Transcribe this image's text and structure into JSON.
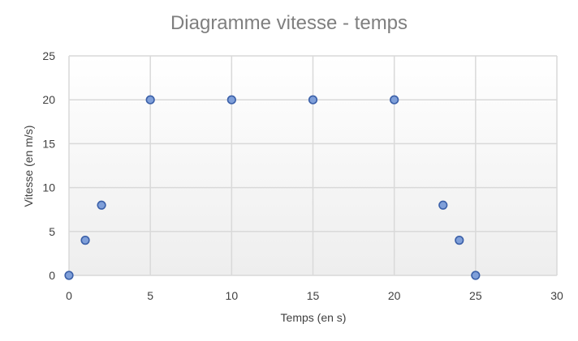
{
  "chart_data": {
    "type": "scatter",
    "title": "Diagramme vitesse - temps",
    "xlabel": "Temps (en s)",
    "ylabel": "Vitesse (en m/s)",
    "xlim": [
      0,
      30
    ],
    "ylim": [
      0,
      25
    ],
    "xticks": [
      0,
      5,
      10,
      15,
      20,
      25,
      30
    ],
    "yticks": [
      0,
      5,
      10,
      15,
      20,
      25
    ],
    "grid": true,
    "legend": "none",
    "series": [
      {
        "x": [
          0,
          1,
          2,
          5,
          10,
          15,
          20,
          23,
          24,
          25
        ],
        "y": [
          0,
          4,
          8,
          20,
          20,
          20,
          20,
          8,
          4,
          0
        ]
      }
    ],
    "colors": {
      "marker_fill": "#7f9fd9",
      "marker_stroke": "#3a5fa8",
      "grid": "#d9d9d9",
      "title": "#7f7f7f"
    }
  }
}
